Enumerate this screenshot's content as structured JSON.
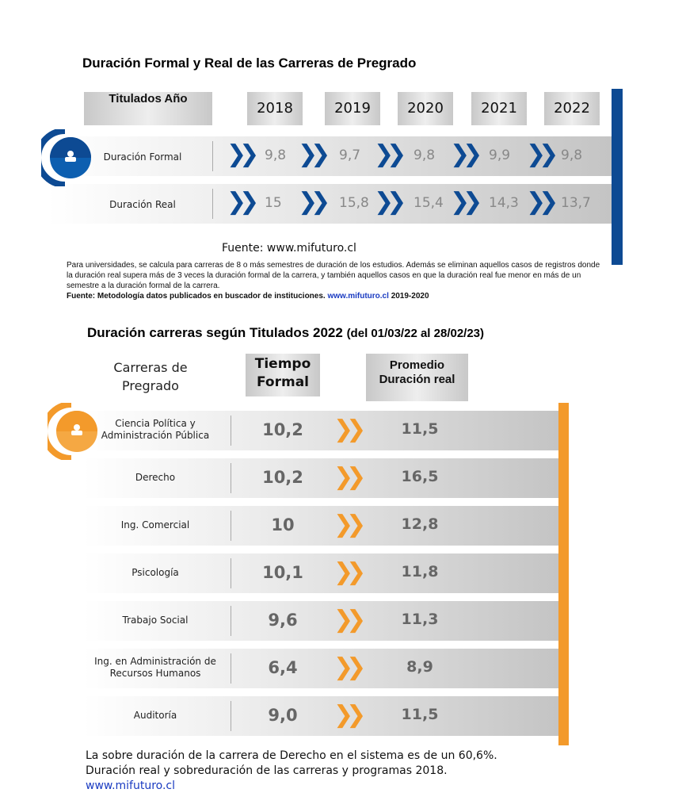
{
  "section1": {
    "title": "Duración Formal y Real de las Carreras de Pregrado",
    "header_label": "Titulados Año",
    "years": [
      "2018",
      "2019",
      "2020",
      "2021",
      "2022"
    ],
    "rows": [
      {
        "label": "Duración Formal",
        "values": [
          "9,8",
          "9,7",
          "9,8",
          "9,9",
          "9,8"
        ]
      },
      {
        "label": "Duración Real",
        "values": [
          "15",
          "15,8",
          "15,4",
          "14,3",
          "13,7"
        ]
      }
    ],
    "source": "Fuente: www.mifuturo.cl",
    "note": "Para universidades, se calcula para carreras de 8 o más semestres de duración de los estudios. Además se eliminan aquellos casos de registros donde la duración real supera más de 3  veces  la duración  formal  de la  carrera, y también aquellos casos en que la duración real fue menor en más de un semestre a la duración formal de la carrera.",
    "note_source_prefix": "Fuente: Metodología datos publicados en buscador de instituciones.",
    "note_source_link": "www.mifuturo.cl",
    "note_source_suffix": "2019-2020",
    "accent": "#0d4a93"
  },
  "section2": {
    "title": "Duración carreras según Titulados 2022",
    "title_suffix": "(del 01/03/22 al 28/02/23)",
    "col_career": "Carreras de Pregrado",
    "col_formal": "Tiempo Formal",
    "col_real": "Promedio Duración real",
    "rows": [
      {
        "career": "Ciencia Política y Administración Pública",
        "formal": "10,2",
        "real": "11,5"
      },
      {
        "career": "Derecho",
        "formal": "10,2",
        "real": "16,5"
      },
      {
        "career": "Ing. Comercial",
        "formal": "10",
        "real": "12,8"
      },
      {
        "career": "Psicología",
        "formal": "10,1",
        "real": "11,8"
      },
      {
        "career": "Trabajo Social",
        "formal": "9,6",
        "real": "11,3"
      },
      {
        "career": "Ing. en Administración de Recursos Humanos",
        "formal": "6,4",
        "real": "8,9"
      },
      {
        "career": "Auditoría",
        "formal": "9,0",
        "real": "11,5"
      }
    ],
    "footer_line1": "La sobre duración de la carrera de Derecho en el sistema es de un 60,6%.",
    "footer_line2": "Duración real y sobreduración de las carreras y programas 2018.",
    "footer_link": "www.mifuturo.cl",
    "accent": "#f39a2b"
  }
}
